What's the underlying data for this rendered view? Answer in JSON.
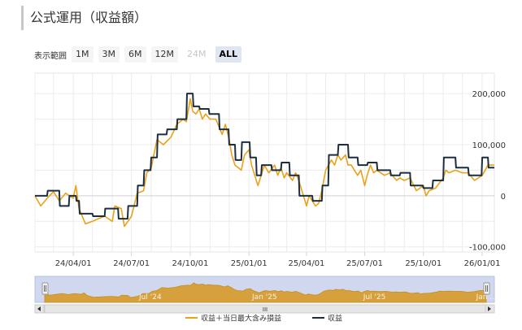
{
  "title": "公式運用（収益額）",
  "range_selector": {
    "label": "表示範囲",
    "buttons": [
      {
        "label": "1M",
        "state": "normal"
      },
      {
        "label": "3M",
        "state": "normal"
      },
      {
        "label": "6M",
        "state": "normal"
      },
      {
        "label": "12M",
        "state": "normal"
      },
      {
        "label": "24M",
        "state": "disabled"
      },
      {
        "label": "ALL",
        "state": "active"
      }
    ]
  },
  "navigator": {
    "labels": [
      "Jul '24",
      "Jan '25",
      "Jul '25",
      "Jan ..."
    ],
    "scrollbar_grip": "III"
  },
  "chart_data": {
    "type": "line",
    "x_start": "2024-02-01",
    "x_end": "2026-01-20",
    "xlim": [
      "2024-02-01",
      "2026-01-20"
    ],
    "ylim": [
      -110000,
      240000
    ],
    "y_ticks": [
      "200,000",
      "100,000",
      "0",
      "-100,000"
    ],
    "x_ticks": [
      {
        "date": "2024-04-01",
        "label": "24/04/01"
      },
      {
        "date": "2024-07-01",
        "label": "24/07/01"
      },
      {
        "date": "2024-10-01",
        "label": "24/10/01"
      },
      {
        "date": "2025-01-01",
        "label": "25/01/01"
      },
      {
        "date": "2025-04-01",
        "label": "25/04/01"
      },
      {
        "date": "2025-07-01",
        "label": "25/07/01"
      },
      {
        "date": "2025-10-01",
        "label": "25/10/01"
      },
      {
        "date": "2026-01-01",
        "label": "26/01/01"
      }
    ],
    "grid": true,
    "legend_position": "bottom",
    "series": [
      {
        "name": "収益＋当日最大含み損益",
        "color": "#e9a21a",
        "points": [
          [
            "2024-02-01",
            0
          ],
          [
            "2024-02-10",
            -20000
          ],
          [
            "2024-02-20",
            -5000
          ],
          [
            "2024-03-01",
            8000
          ],
          [
            "2024-03-10",
            -10000
          ],
          [
            "2024-03-20",
            5000
          ],
          [
            "2024-04-01",
            -5000
          ],
          [
            "2024-04-05",
            20000
          ],
          [
            "2024-04-10",
            -25000
          ],
          [
            "2024-04-20",
            -55000
          ],
          [
            "2024-05-01",
            -50000
          ],
          [
            "2024-05-10",
            -45000
          ],
          [
            "2024-05-20",
            -40000
          ],
          [
            "2024-06-01",
            -50000
          ],
          [
            "2024-06-05",
            -20000
          ],
          [
            "2024-06-15",
            -25000
          ],
          [
            "2024-06-20",
            -60000
          ],
          [
            "2024-07-01",
            -40000
          ],
          [
            "2024-07-10",
            5000
          ],
          [
            "2024-07-20",
            10000
          ],
          [
            "2024-07-25",
            45000
          ],
          [
            "2024-08-01",
            55000
          ],
          [
            "2024-08-10",
            110000
          ],
          [
            "2024-08-20",
            100000
          ],
          [
            "2024-09-01",
            115000
          ],
          [
            "2024-09-10",
            140000
          ],
          [
            "2024-09-20",
            150000
          ],
          [
            "2024-09-25",
            145000
          ],
          [
            "2024-10-01",
            190000
          ],
          [
            "2024-10-05",
            165000
          ],
          [
            "2024-10-10",
            160000
          ],
          [
            "2024-10-15",
            170000
          ],
          [
            "2024-10-20",
            150000
          ],
          [
            "2024-10-25",
            160000
          ],
          [
            "2024-11-01",
            150000
          ],
          [
            "2024-11-10",
            150000
          ],
          [
            "2024-11-20",
            120000
          ],
          [
            "2024-11-25",
            140000
          ],
          [
            "2024-12-01",
            110000
          ],
          [
            "2024-12-05",
            80000
          ],
          [
            "2024-12-10",
            60000
          ],
          [
            "2024-12-20",
            50000
          ],
          [
            "2024-12-25",
            80000
          ],
          [
            "2025-01-01",
            90000
          ],
          [
            "2025-01-05",
            60000
          ],
          [
            "2025-01-10",
            40000
          ],
          [
            "2025-01-15",
            20000
          ],
          [
            "2025-01-20",
            40000
          ],
          [
            "2025-01-25",
            60000
          ],
          [
            "2025-02-01",
            45000
          ],
          [
            "2025-02-10",
            60000
          ],
          [
            "2025-02-15",
            40000
          ],
          [
            "2025-02-20",
            55000
          ],
          [
            "2025-02-25",
            35000
          ],
          [
            "2025-03-01",
            45000
          ],
          [
            "2025-03-10",
            30000
          ],
          [
            "2025-03-15",
            45000
          ],
          [
            "2025-03-20",
            30000
          ],
          [
            "2025-04-01",
            -20000
          ],
          [
            "2025-04-05",
            0
          ],
          [
            "2025-04-10",
            -10000
          ],
          [
            "2025-04-15",
            -20000
          ],
          [
            "2025-04-20",
            -15000
          ],
          [
            "2025-04-25",
            10000
          ],
          [
            "2025-05-01",
            50000
          ],
          [
            "2025-05-10",
            70000
          ],
          [
            "2025-05-15",
            60000
          ],
          [
            "2025-05-20",
            80000
          ],
          [
            "2025-05-25",
            70000
          ],
          [
            "2025-06-01",
            80000
          ],
          [
            "2025-06-05",
            60000
          ],
          [
            "2025-06-10",
            60000
          ],
          [
            "2025-06-20",
            40000
          ],
          [
            "2025-06-25",
            50000
          ],
          [
            "2025-07-01",
            20000
          ],
          [
            "2025-07-05",
            40000
          ],
          [
            "2025-07-10",
            60000
          ],
          [
            "2025-07-15",
            45000
          ],
          [
            "2025-07-20",
            50000
          ],
          [
            "2025-08-01",
            40000
          ],
          [
            "2025-08-10",
            45000
          ],
          [
            "2025-08-20",
            30000
          ],
          [
            "2025-08-25",
            35000
          ],
          [
            "2025-09-01",
            30000
          ],
          [
            "2025-09-10",
            35000
          ],
          [
            "2025-09-20",
            10000
          ],
          [
            "2025-10-01",
            20000
          ],
          [
            "2025-10-05",
            0
          ],
          [
            "2025-10-10",
            10000
          ],
          [
            "2025-10-20",
            15000
          ],
          [
            "2025-11-01",
            35000
          ],
          [
            "2025-11-05",
            50000
          ],
          [
            "2025-11-10",
            45000
          ],
          [
            "2025-11-20",
            50000
          ],
          [
            "2025-12-01",
            45000
          ],
          [
            "2025-12-10",
            45000
          ],
          [
            "2025-12-20",
            30000
          ],
          [
            "2026-01-01",
            40000
          ],
          [
            "2026-01-10",
            60000
          ],
          [
            "2026-01-20",
            60000
          ]
        ]
      },
      {
        "name": "収益",
        "color": "#1b2f40",
        "points": [
          [
            "2024-02-01",
            0
          ],
          [
            "2024-02-20",
            0
          ],
          [
            "2024-02-21",
            10000
          ],
          [
            "2024-03-10",
            10000
          ],
          [
            "2024-03-11",
            -20000
          ],
          [
            "2024-03-25",
            -20000
          ],
          [
            "2024-03-26",
            0
          ],
          [
            "2024-04-05",
            0
          ],
          [
            "2024-04-06",
            -10000
          ],
          [
            "2024-04-10",
            -10000
          ],
          [
            "2024-04-11",
            -35000
          ],
          [
            "2024-05-01",
            -35000
          ],
          [
            "2024-05-02",
            -40000
          ],
          [
            "2024-05-20",
            -40000
          ],
          [
            "2024-05-21",
            -25000
          ],
          [
            "2024-06-10",
            -25000
          ],
          [
            "2024-06-11",
            -45000
          ],
          [
            "2024-06-25",
            -45000
          ],
          [
            "2024-06-26",
            -20000
          ],
          [
            "2024-07-10",
            -20000
          ],
          [
            "2024-07-11",
            20000
          ],
          [
            "2024-07-20",
            20000
          ],
          [
            "2024-07-21",
            50000
          ],
          [
            "2024-07-31",
            50000
          ],
          [
            "2024-08-01",
            75000
          ],
          [
            "2024-08-10",
            75000
          ],
          [
            "2024-08-11",
            120000
          ],
          [
            "2024-08-25",
            120000
          ],
          [
            "2024-08-26",
            130000
          ],
          [
            "2024-09-10",
            130000
          ],
          [
            "2024-09-11",
            150000
          ],
          [
            "2024-09-25",
            150000
          ],
          [
            "2024-09-26",
            200000
          ],
          [
            "2024-10-05",
            200000
          ],
          [
            "2024-10-06",
            175000
          ],
          [
            "2024-10-15",
            175000
          ],
          [
            "2024-10-16",
            170000
          ],
          [
            "2024-10-30",
            170000
          ],
          [
            "2024-10-31",
            160000
          ],
          [
            "2024-11-15",
            160000
          ],
          [
            "2024-11-16",
            130000
          ],
          [
            "2024-11-30",
            130000
          ],
          [
            "2024-12-01",
            100000
          ],
          [
            "2024-12-10",
            100000
          ],
          [
            "2024-12-11",
            70000
          ],
          [
            "2024-12-20",
            70000
          ],
          [
            "2024-12-21",
            105000
          ],
          [
            "2025-01-02",
            105000
          ],
          [
            "2025-01-03",
            75000
          ],
          [
            "2025-01-12",
            75000
          ],
          [
            "2025-01-13",
            40000
          ],
          [
            "2025-01-20",
            40000
          ],
          [
            "2025-01-21",
            60000
          ],
          [
            "2025-02-05",
            60000
          ],
          [
            "2025-02-06",
            50000
          ],
          [
            "2025-02-20",
            50000
          ],
          [
            "2025-02-21",
            65000
          ],
          [
            "2025-03-05",
            65000
          ],
          [
            "2025-03-06",
            40000
          ],
          [
            "2025-03-20",
            40000
          ],
          [
            "2025-03-21",
            0
          ],
          [
            "2025-04-10",
            0
          ],
          [
            "2025-04-11",
            -10000
          ],
          [
            "2025-04-25",
            -10000
          ],
          [
            "2025-04-26",
            20000
          ],
          [
            "2025-05-05",
            20000
          ],
          [
            "2025-05-06",
            80000
          ],
          [
            "2025-05-20",
            80000
          ],
          [
            "2025-05-21",
            100000
          ],
          [
            "2025-06-05",
            100000
          ],
          [
            "2025-06-06",
            75000
          ],
          [
            "2025-06-20",
            75000
          ],
          [
            "2025-06-21",
            60000
          ],
          [
            "2025-07-05",
            60000
          ],
          [
            "2025-07-06",
            65000
          ],
          [
            "2025-07-20",
            65000
          ],
          [
            "2025-07-21",
            50000
          ],
          [
            "2025-08-10",
            50000
          ],
          [
            "2025-08-11",
            40000
          ],
          [
            "2025-08-25",
            40000
          ],
          [
            "2025-08-26",
            45000
          ],
          [
            "2025-09-10",
            45000
          ],
          [
            "2025-09-11",
            20000
          ],
          [
            "2025-09-30",
            20000
          ],
          [
            "2025-10-01",
            15000
          ],
          [
            "2025-10-15",
            15000
          ],
          [
            "2025-10-16",
            30000
          ],
          [
            "2025-11-01",
            30000
          ],
          [
            "2025-11-02",
            75000
          ],
          [
            "2025-11-20",
            75000
          ],
          [
            "2025-11-21",
            55000
          ],
          [
            "2025-12-10",
            55000
          ],
          [
            "2025-12-11",
            40000
          ],
          [
            "2025-12-31",
            40000
          ],
          [
            "2026-01-01",
            75000
          ],
          [
            "2026-01-10",
            75000
          ],
          [
            "2026-01-11",
            55000
          ],
          [
            "2026-01-20",
            55000
          ]
        ]
      }
    ]
  }
}
